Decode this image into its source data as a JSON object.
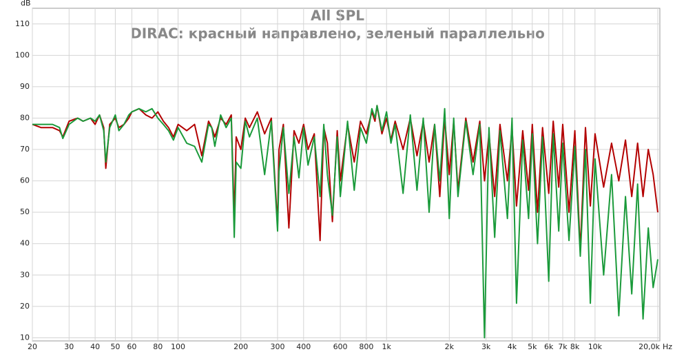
{
  "chart_data": {
    "type": "line",
    "title": "All SPL",
    "subtitle": "DIRAC: красный направлено, зеленый параллельно",
    "xlabel": "Hz",
    "ylabel": "dB",
    "xscale": "log",
    "grid": true,
    "xlim": [
      20,
      20000
    ],
    "ylim": [
      9,
      115
    ],
    "xticks": [
      20,
      30,
      40,
      50,
      60,
      80,
      100,
      200,
      300,
      400,
      600,
      800,
      {
        "value": 1000,
        "label": "1k"
      },
      {
        "value": 2000,
        "label": "2k"
      },
      {
        "value": 3000,
        "label": "3k"
      },
      {
        "value": 4000,
        "label": "4k"
      },
      {
        "value": 5000,
        "label": "5k"
      },
      {
        "value": 6000,
        "label": "6k"
      },
      {
        "value": 7000,
        "label": "7k"
      },
      {
        "value": 8000,
        "label": "8k"
      },
      {
        "value": 10000,
        "label": "10k"
      },
      {
        "value": 20000,
        "label": "20,0k"
      }
    ],
    "yticks": [
      10,
      20,
      30,
      40,
      50,
      60,
      70,
      80,
      90,
      100,
      110
    ],
    "x": [
      20,
      22,
      25,
      27,
      28,
      30,
      33,
      35,
      38,
      40,
      42,
      44,
      45,
      47,
      50,
      52,
      55,
      58,
      60,
      65,
      70,
      75,
      80,
      85,
      90,
      95,
      100,
      110,
      120,
      130,
      140,
      145,
      150,
      160,
      170,
      180,
      186,
      190,
      200,
      210,
      220,
      240,
      260,
      280,
      300,
      305,
      320,
      340,
      360,
      380,
      400,
      420,
      450,
      480,
      500,
      520,
      550,
      580,
      600,
      650,
      700,
      750,
      800,
      850,
      880,
      900,
      950,
      1000,
      1050,
      1100,
      1200,
      1300,
      1400,
      1500,
      1600,
      1700,
      1800,
      1900,
      2000,
      2100,
      2200,
      2400,
      2600,
      2800,
      2950,
      3100,
      3300,
      3500,
      3800,
      4000,
      4200,
      4500,
      4800,
      5000,
      5300,
      5600,
      6000,
      6300,
      6700,
      7000,
      7500,
      8000,
      8500,
      9000,
      9500,
      10000,
      11000,
      12000,
      13000,
      14000,
      15000,
      16000,
      17000,
      18000,
      19000,
      20000
    ],
    "series": [
      {
        "color": "#b30000",
        "values": [
          78,
          77,
          77,
          76,
          74,
          79,
          80,
          79,
          80,
          78,
          81,
          77,
          64,
          78,
          80,
          77,
          78,
          80,
          82,
          83,
          81,
          80,
          82,
          79,
          77,
          74,
          78,
          76,
          78,
          68,
          79,
          77,
          74,
          80,
          78,
          81,
          48,
          74,
          70,
          80,
          77,
          82,
          75,
          80,
          46,
          70,
          78,
          45,
          76,
          72,
          78,
          70,
          75,
          41,
          77,
          72,
          47,
          76,
          60,
          78,
          66,
          79,
          75,
          82,
          79,
          84,
          75,
          80,
          73,
          79,
          70,
          80,
          68,
          79,
          66,
          78,
          55,
          80,
          62,
          79,
          57,
          80,
          66,
          79,
          60,
          75,
          55,
          78,
          60,
          77,
          52,
          76,
          57,
          78,
          50,
          77,
          56,
          79,
          58,
          78,
          50,
          76,
          38,
          77,
          52,
          75,
          58,
          72,
          60,
          73,
          55,
          72,
          55,
          70,
          62,
          50
        ]
      },
      {
        "color": "#1a9a3a",
        "values": [
          78,
          78,
          78,
          77,
          73.5,
          78,
          80,
          79,
          80,
          79,
          81,
          76,
          66,
          77,
          81,
          76,
          78,
          81,
          82,
          83,
          82,
          83,
          80,
          78,
          76,
          73,
          77,
          72,
          71,
          66,
          78,
          77,
          71,
          81,
          77,
          80,
          42,
          66,
          64,
          79,
          74,
          80,
          62,
          79,
          44,
          63,
          77,
          56,
          74,
          61,
          77,
          65,
          74,
          55,
          78,
          62,
          49,
          74,
          55,
          79,
          57,
          77,
          72,
          83,
          80,
          84,
          76,
          82,
          72,
          78,
          56,
          81,
          57,
          80,
          50,
          78,
          60,
          83,
          48,
          80,
          55,
          79,
          62,
          78,
          10,
          77,
          42,
          76,
          48,
          80,
          21,
          73,
          48,
          75,
          40,
          74,
          28,
          75,
          44,
          72,
          41,
          71,
          36,
          70,
          21,
          67,
          30,
          62,
          17,
          55,
          24,
          59,
          16,
          45,
          26,
          35
        ]
      }
    ]
  }
}
